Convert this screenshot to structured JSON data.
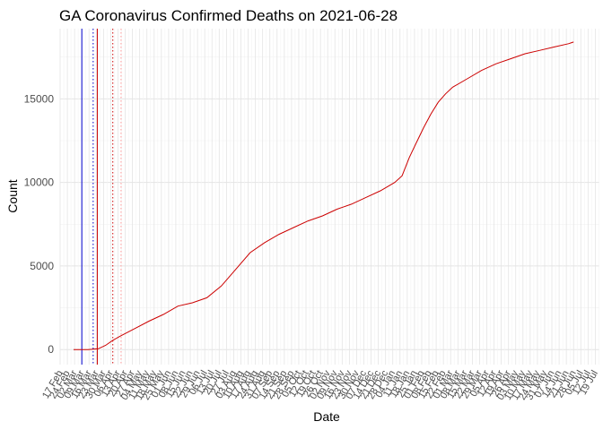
{
  "chart_data": {
    "type": "line",
    "title": "GA Coronavirus Confirmed Deaths on 2021-06-28",
    "xlabel": "Date",
    "ylabel": "Count",
    "x_type": "date",
    "xlim": [
      "2020-02-17",
      "2021-07-23"
    ],
    "ylim": [
      -900,
      19200
    ],
    "y_ticks": [
      0,
      5000,
      10000,
      15000
    ],
    "y_tick_labels": [
      "0",
      "5000",
      "10000",
      "15000"
    ],
    "grid": true,
    "legend": "none",
    "series_color": "#cc0000",
    "x_tick_dates": [
      "2020-02-17",
      "2020-02-24",
      "2020-03-02",
      "2020-03-09",
      "2020-03-16",
      "2020-03-23",
      "2020-03-30",
      "2020-04-06",
      "2020-04-13",
      "2020-04-20",
      "2020-04-27",
      "2020-05-04",
      "2020-05-11",
      "2020-05-18",
      "2020-05-25",
      "2020-06-01",
      "2020-06-08",
      "2020-06-15",
      "2020-06-22",
      "2020-06-29",
      "2020-07-06",
      "2020-07-13",
      "2020-07-20",
      "2020-07-27",
      "2020-08-03",
      "2020-08-10",
      "2020-08-17",
      "2020-08-24",
      "2020-08-31",
      "2020-09-07",
      "2020-09-14",
      "2020-09-21",
      "2020-09-28",
      "2020-10-05",
      "2020-10-12",
      "2020-10-19",
      "2020-10-26",
      "2020-11-02",
      "2020-11-09",
      "2020-11-16",
      "2020-11-23",
      "2020-11-30",
      "2020-12-07",
      "2020-12-14",
      "2020-12-21",
      "2020-12-28",
      "2021-01-04",
      "2021-01-11",
      "2021-01-18",
      "2021-01-25",
      "2021-02-01",
      "2021-02-08",
      "2021-02-15",
      "2021-02-22",
      "2021-03-01",
      "2021-03-08",
      "2021-03-15",
      "2021-03-22",
      "2021-03-29",
      "2021-04-05",
      "2021-04-12",
      "2021-04-19",
      "2021-04-26",
      "2021-05-03",
      "2021-05-10",
      "2021-05-17",
      "2021-05-24",
      "2021-05-31",
      "2021-06-07",
      "2021-06-14",
      "2021-06-21",
      "2021-06-28",
      "2021-07-05",
      "2021-07-12",
      "2021-07-19"
    ],
    "x_tick_labels": [
      "17 Feb",
      "24 Feb",
      "02 Mar",
      "09 Mar",
      "16 Mar",
      "23 Mar",
      "30 Mar",
      "06 Apr",
      "13 Apr",
      "20 Apr",
      "27 Apr",
      "04 May",
      "11 May",
      "18 May",
      "25 May",
      "01 Jun",
      "08 Jun",
      "15 Jun",
      "22 Jun",
      "29 Jun",
      "06 Jul",
      "13 Jul",
      "20 Jul",
      "27 Jul",
      "03 Aug",
      "10 Aug",
      "17 Aug",
      "24 Aug",
      "31 Aug",
      "07 Sep",
      "14 Sep",
      "21 Sep",
      "28 Sep",
      "05 Oct",
      "12 Oct",
      "19 Oct",
      "26 Oct",
      "02 Nov",
      "09 Nov",
      "16 Nov",
      "23 Nov",
      "30 Nov",
      "07 Dec",
      "14 Dec",
      "21 Dec",
      "28 Dec",
      "04 Jan",
      "11 Jan",
      "18 Jan",
      "25 Jan",
      "01 Feb",
      "08 Feb",
      "15 Feb",
      "22 Feb",
      "01 Mar",
      "08 Mar",
      "15 Mar",
      "22 Mar",
      "29 Mar",
      "05 Apr",
      "12 Apr",
      "19 Apr",
      "26 Apr",
      "03 May",
      "10 May",
      "17 May",
      "24 May",
      "31 May",
      "07 Jun",
      "14 Jun",
      "21 Jun",
      "28 Jun",
      "05 Jul",
      "12 Jul",
      "19 Jul"
    ],
    "reference_lines": [
      {
        "date": "2020-03-09",
        "color": "#0000cc",
        "style": "solid"
      },
      {
        "date": "2020-03-20",
        "color": "#0000cc",
        "style": "dotted"
      },
      {
        "date": "2020-03-24",
        "color": "#cc0000",
        "style": "solid"
      },
      {
        "date": "2020-04-08",
        "color": "#cc0000",
        "style": "dotted"
      },
      {
        "date": "2020-04-16",
        "color": "#ff9999",
        "style": "dotted"
      }
    ],
    "series": [
      {
        "x": [
          "2020-03-01",
          "2020-03-15",
          "2020-03-25",
          "2020-04-01",
          "2020-04-08",
          "2020-04-15",
          "2020-04-29",
          "2020-05-13",
          "2020-05-27",
          "2020-06-10",
          "2020-06-24",
          "2020-07-08",
          "2020-07-22",
          "2020-08-05",
          "2020-08-19",
          "2020-09-02",
          "2020-09-16",
          "2020-09-30",
          "2020-10-14",
          "2020-10-28",
          "2020-11-11",
          "2020-11-25",
          "2020-12-09",
          "2020-12-23",
          "2021-01-06",
          "2021-01-13",
          "2021-01-20",
          "2021-01-27",
          "2021-02-03",
          "2021-02-10",
          "2021-02-17",
          "2021-02-24",
          "2021-03-03",
          "2021-03-17",
          "2021-03-31",
          "2021-04-14",
          "2021-04-28",
          "2021-05-12",
          "2021-05-26",
          "2021-06-09",
          "2021-06-23",
          "2021-06-28"
        ],
        "y": [
          0,
          0,
          50,
          250,
          550,
          800,
          1250,
          1700,
          2100,
          2600,
          2800,
          3100,
          3800,
          4800,
          5800,
          6400,
          6900,
          7300,
          7700,
          8000,
          8400,
          8700,
          9100,
          9500,
          10000,
          10400,
          11500,
          12400,
          13300,
          14100,
          14800,
          15300,
          15700,
          16200,
          16700,
          17100,
          17400,
          17700,
          17900,
          18100,
          18300,
          18400
        ]
      }
    ]
  }
}
